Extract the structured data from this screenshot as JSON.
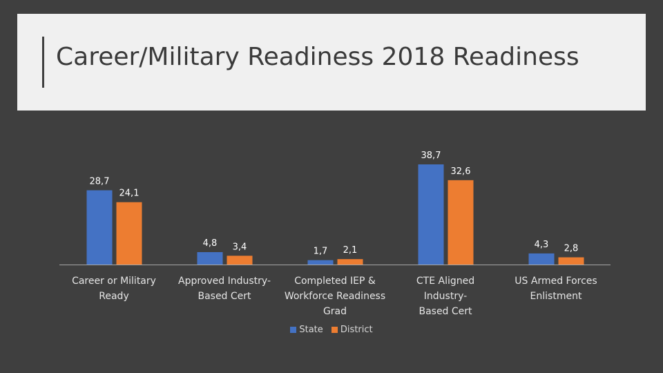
{
  "title": "Career/Military Readiness 2018 Readiness",
  "chart_data": {
    "type": "bar",
    "categories": [
      [
        "Career or Military",
        "Ready"
      ],
      [
        "Approved Industry-",
        "Based Cert"
      ],
      [
        "Completed IEP &",
        "Workforce Readiness",
        "Grad"
      ],
      [
        "CTE Aligned Industry-",
        "Based Cert"
      ],
      [
        "US Armed Forces",
        "Enlistment"
      ]
    ],
    "series": [
      {
        "name": "State",
        "color": "#4472c4",
        "values": [
          28.7,
          4.8,
          1.7,
          38.7,
          4.3
        ],
        "labels": [
          "28,7",
          "4,8",
          "1,7",
          "38,7",
          "4,3"
        ]
      },
      {
        "name": "District",
        "color": "#ed7d31",
        "values": [
          24.1,
          3.4,
          2.1,
          32.6,
          2.8
        ],
        "labels": [
          "24,1",
          "3,4",
          "2,1",
          "32,6",
          "2,8"
        ]
      }
    ],
    "legend": "bottom",
    "grid": false
  }
}
